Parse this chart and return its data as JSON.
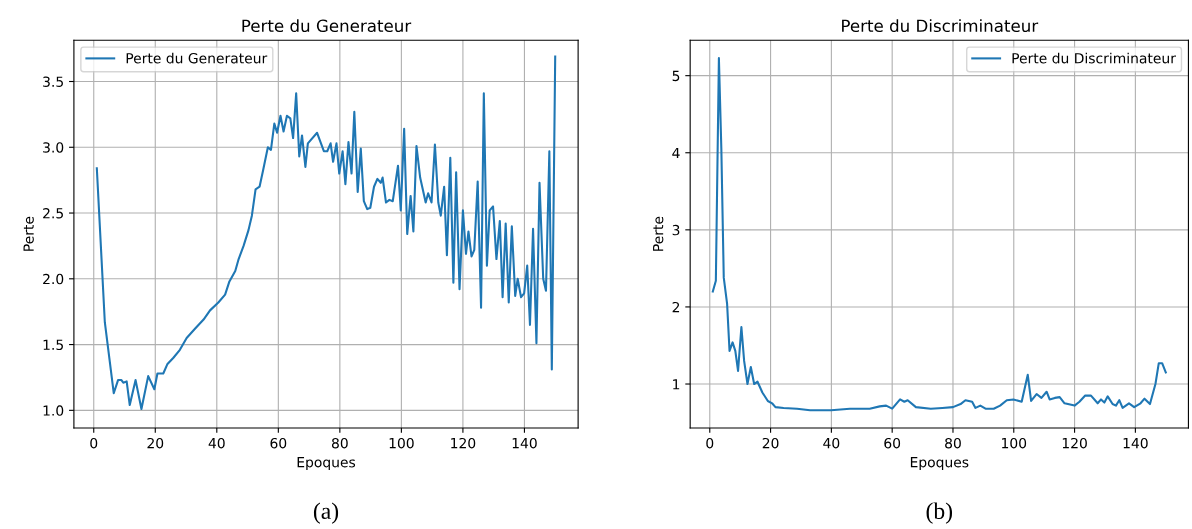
{
  "chart_data": [
    {
      "type": "line",
      "title": "Perte du Generateur",
      "xlabel": "Epoques",
      "ylabel": "Perte",
      "annotations": [
        "(a)"
      ],
      "xlim": [
        -6.45,
        157.45
      ],
      "xticks": [
        0,
        20,
        40,
        60,
        80,
        100,
        120,
        140
      ],
      "ylim": [
        0.866,
        3.814
      ],
      "yticks": [
        {
          "value": 1,
          "label": "1.0"
        },
        1.5,
        {
          "value": 2,
          "label": "2.0"
        },
        2.5,
        {
          "value": 3,
          "label": "3.0"
        },
        3.5
      ],
      "grid": true,
      "legend": "top left",
      "marker": "none",
      "line_style": "solid",
      "series": [
        {
          "name": "Perte du Generateur",
          "color": "#1f77b4",
          "x": [
            1,
            3.6,
            6.5,
            7.9,
            9.0,
            9.6,
            10.7,
            11.7,
            13.6,
            15.5,
            17.7,
            19.7,
            20.7,
            22.6,
            23.9,
            25.9,
            28,
            30.2,
            32.9,
            35.7,
            37.8,
            40.5,
            42.7,
            44.1,
            46,
            47.1,
            48.7,
            50.3,
            51.4,
            52.6,
            53.9,
            55,
            56.6,
            57.6,
            58.7,
            59.6,
            60.7,
            61.7,
            62.8,
            63.9,
            64.8,
            65.8,
            66.8,
            67.7,
            68.8,
            69.6,
            72.6,
            74.8,
            75.9,
            77,
            77.8,
            78.9,
            79.8,
            80.9,
            81.8,
            82.8,
            83.8,
            84.7,
            85.8,
            86.8,
            87.8,
            88.9,
            89.9,
            91.1,
            92.2,
            93.3,
            93.9,
            95,
            96.1,
            97.2,
            98.9,
            99.8,
            100.9,
            101.9,
            103,
            103.9,
            104.9,
            106.1,
            107.9,
            108.7,
            109.8,
            110.9,
            112,
            112.8,
            113.9,
            114.8,
            115.9,
            116.9,
            117.8,
            118.9,
            120,
            121,
            121.8,
            122.8,
            123.7,
            124.8,
            125.9,
            126.8,
            127.8,
            128.7,
            129.8,
            130.9,
            132,
            132.9,
            133.9,
            134.9,
            135.9,
            137,
            137.8,
            138.9,
            139.9,
            140.9,
            141.8,
            142.8,
            143.9,
            144.9,
            146.1,
            147,
            148.1,
            148.9,
            150
          ],
          "values": [
            2.84,
            1.67,
            1.13,
            1.23,
            1.23,
            1.21,
            1.22,
            1.04,
            1.23,
            1.01,
            1.26,
            1.16,
            1.28,
            1.28,
            1.35,
            1.4,
            1.46,
            1.55,
            1.62,
            1.69,
            1.76,
            1.82,
            1.88,
            1.98,
            2.06,
            2.15,
            2.25,
            2.37,
            2.48,
            2.68,
            2.7,
            2.82,
            3.0,
            2.98,
            3.18,
            3.11,
            3.24,
            3.12,
            3.24,
            3.22,
            3.07,
            3.41,
            2.93,
            3.09,
            2.85,
            3.03,
            3.11,
            2.97,
            2.97,
            3.03,
            2.89,
            3.03,
            2.8,
            2.97,
            2.72,
            3.04,
            2.8,
            3.27,
            2.66,
            2.99,
            2.59,
            2.53,
            2.54,
            2.7,
            2.76,
            2.73,
            2.77,
            2.58,
            2.6,
            2.59,
            2.86,
            2.52,
            3.14,
            2.34,
            2.63,
            2.36,
            3.01,
            2.77,
            2.58,
            2.65,
            2.58,
            3.02,
            2.58,
            2.48,
            2.7,
            2.18,
            2.92,
            1.97,
            2.81,
            1.92,
            2.52,
            2.19,
            2.36,
            2.17,
            2.22,
            2.74,
            1.78,
            3.41,
            2.1,
            2.52,
            2.55,
            2.15,
            2.44,
            1.86,
            2.42,
            1.82,
            2.4,
            1.87,
            2.0,
            1.86,
            1.89,
            2.1,
            1.65,
            2.38,
            1.51,
            2.73,
            2.0,
            1.91,
            2.97,
            1.31,
            3.69
          ]
        }
      ]
    },
    {
      "type": "line",
      "title": "Perte du Discriminateur",
      "xlabel": "Epoques",
      "ylabel": "Perte",
      "annotations": [
        "(b)"
      ],
      "xlim": [
        -6.45,
        157.45
      ],
      "xticks": [
        0,
        20,
        40,
        60,
        80,
        100,
        120,
        140
      ],
      "ylim": [
        0.43,
        5.46
      ],
      "yticks": [
        1,
        2,
        3,
        4,
        5
      ],
      "grid": true,
      "legend": "top right",
      "marker": "none",
      "line_style": "solid",
      "series": [
        {
          "name": "Perte du Discriminateur",
          "color": "#1f77b4",
          "x": [
            1,
            2,
            3,
            3.8,
            4.6,
            5.7,
            6.5,
            7.5,
            8.4,
            9.3,
            10.4,
            11.3,
            12.4,
            13.5,
            14.6,
            15.7,
            17.3,
            19.1,
            20.5,
            21.6,
            24.3,
            28.7,
            33,
            39.9,
            46.1,
            52.6,
            55.9,
            58,
            60,
            62.6,
            64,
            65.1,
            67.8,
            72.7,
            76.5,
            80,
            82.5,
            84.1,
            86.3,
            87.4,
            89,
            90.7,
            93.4,
            95.5,
            97.7,
            99.9,
            102.6,
            104.6,
            105.7,
            107.5,
            109.1,
            110.8,
            111.8,
            113.5,
            115.1,
            116.7,
            120,
            121.6,
            123.5,
            125.4,
            127.6,
            128.7,
            129.8,
            130.9,
            132.5,
            133.6,
            134.7,
            135.8,
            137.9,
            139.6,
            141.7,
            143.0,
            144.8,
            146.6,
            147.7,
            148.8,
            150
          ],
          "values": [
            2.2,
            2.34,
            5.23,
            4.06,
            2.38,
            2.04,
            1.43,
            1.54,
            1.43,
            1.17,
            1.74,
            1.3,
            1.0,
            1.22,
            1.0,
            1.03,
            0.89,
            0.78,
            0.75,
            0.7,
            0.69,
            0.68,
            0.66,
            0.66,
            0.68,
            0.68,
            0.71,
            0.72,
            0.68,
            0.8,
            0.77,
            0.79,
            0.7,
            0.68,
            0.69,
            0.7,
            0.74,
            0.79,
            0.77,
            0.69,
            0.72,
            0.68,
            0.68,
            0.72,
            0.79,
            0.8,
            0.77,
            1.12,
            0.78,
            0.87,
            0.82,
            0.9,
            0.8,
            0.82,
            0.83,
            0.75,
            0.72,
            0.77,
            0.85,
            0.85,
            0.75,
            0.8,
            0.76,
            0.84,
            0.74,
            0.72,
            0.79,
            0.69,
            0.75,
            0.7,
            0.75,
            0.81,
            0.74,
            1.0,
            1.27,
            1.27,
            1.15
          ]
        }
      ]
    }
  ]
}
